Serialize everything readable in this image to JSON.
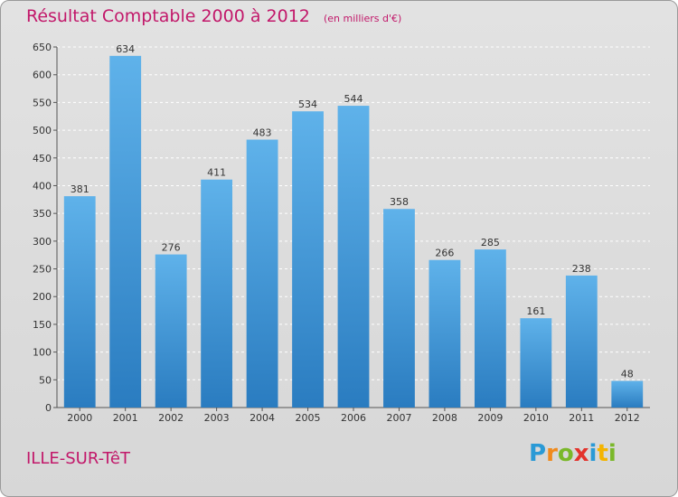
{
  "title": "Résultat Comptable 2000 à 2012",
  "unit": "(en milliers d'€)",
  "city": "ILLE-SUR-TêT",
  "logo": {
    "letters": [
      "P",
      "r",
      "o",
      "x",
      "i",
      "t",
      "i"
    ],
    "colors": [
      "#2a9ad6",
      "#f08a1c",
      "#7ab82a",
      "#e3322b",
      "#2a9ad6",
      "#f4b400",
      "#7ab82a"
    ]
  },
  "colors": {
    "bar_top": "#5fb2ea",
    "bar_bottom": "#2a7cc0",
    "title": "#c2186a"
  },
  "chart_data": {
    "type": "bar",
    "title": "Résultat Comptable 2000 à 2012",
    "subtitle": "(en milliers d'€)",
    "categories": [
      "2000",
      "2001",
      "2002",
      "2003",
      "2004",
      "2005",
      "2006",
      "2007",
      "2008",
      "2009",
      "2010",
      "2011",
      "2012"
    ],
    "values": [
      381,
      634,
      276,
      411,
      483,
      534,
      544,
      358,
      266,
      285,
      161,
      238,
      48
    ],
    "ylim": [
      0,
      650
    ],
    "yticks": [
      0,
      50,
      100,
      150,
      200,
      250,
      300,
      350,
      400,
      450,
      500,
      550,
      600,
      650
    ],
    "grid": true,
    "xlabel": "",
    "ylabel": ""
  }
}
